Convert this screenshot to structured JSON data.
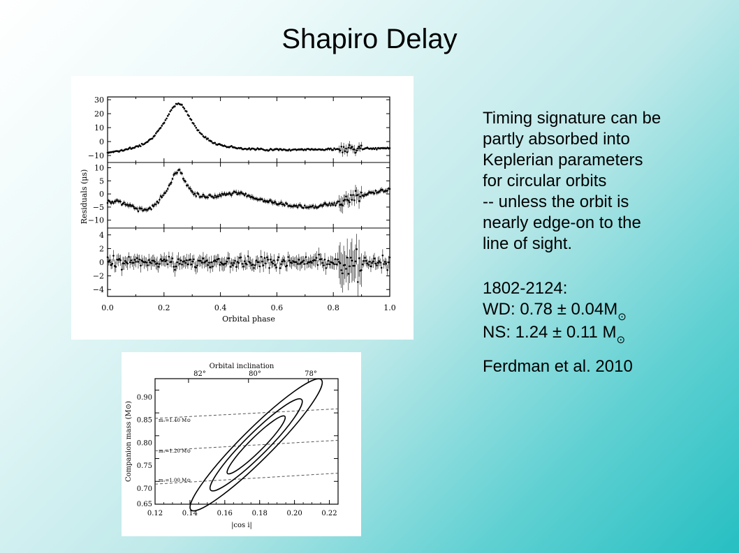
{
  "slide": {
    "title": "Shapiro Delay",
    "body_lines": [
      "Timing signature can be",
      "partly absorbed  into",
      "Keplerian parameters",
      "for circular orbits",
      "-- unless the orbit is",
      "nearly edge-on  to the",
      "line of sight."
    ],
    "pulsar_name": "1802-2124:",
    "wd_mass": "WD: 0.78 ± 0.04M",
    "ns_mass": "NS: 1.24 ± 0.11 M",
    "sun_symbol": "⊙",
    "citation": "Ferdman et al. 2010"
  },
  "chart_data": [
    {
      "type": "scatter",
      "xlabel": "Orbital phase",
      "ylabel": "Residuals (μs)",
      "xlim": [
        0,
        1
      ],
      "x_ticks": [
        "0.0",
        "0.2",
        "0.4",
        "0.6",
        "0.8",
        "1.0"
      ],
      "panels": [
        {
          "ylim": [
            -15,
            32
          ],
          "y_ticks": [
            "30",
            "20",
            "10",
            "0",
            "−10"
          ],
          "description_values": {
            "peak_phase": 0.25,
            "peak_value": 26,
            "baseline": -10
          }
        },
        {
          "ylim": [
            -13,
            12
          ],
          "y_ticks": [
            "10",
            "5",
            "0",
            "−5",
            "−10"
          ],
          "description_values": {
            "peak_phase": 0.25,
            "peak_value": 9
          }
        },
        {
          "ylim": [
            -5,
            5
          ],
          "y_ticks": [
            "4",
            "2",
            "0",
            "−2",
            "−4"
          ]
        }
      ]
    },
    {
      "type": "line",
      "title": "Orbital inclination",
      "xlabel": "|cos i|",
      "ylabel": "Companion mass (M⊙)",
      "xlim": [
        0.12,
        0.225
      ],
      "ylim": [
        0.65,
        0.925
      ],
      "x_ticks": [
        "0.12",
        "0.14",
        "0.16",
        "0.18",
        "0.20",
        "0.22"
      ],
      "y_ticks": [
        "0.90",
        "0.85",
        "0.80",
        "0.75",
        "0.70",
        "0.65"
      ],
      "top_ticks": [
        "82°",
        "80°",
        "78°"
      ],
      "mass_lines": [
        "m₁=1.40 M⊙",
        "m₁=1.20 M⊙",
        "m₁=1.00 M⊙"
      ],
      "ellipse_center": [
        0.178,
        0.78
      ]
    }
  ]
}
